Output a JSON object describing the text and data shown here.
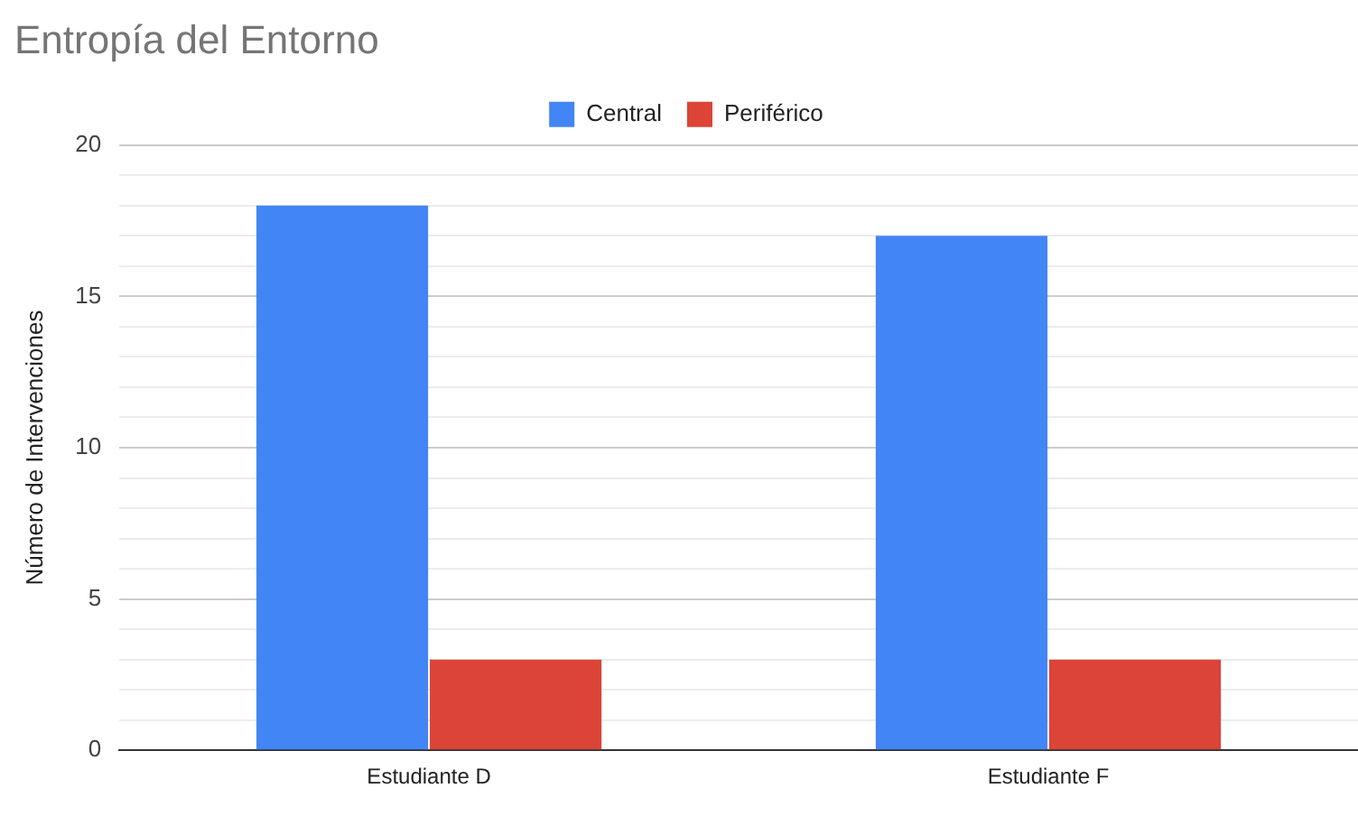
{
  "chart_data": {
    "type": "bar",
    "title": "Entropía del Entorno",
    "ylabel": "Número de Intervenciones",
    "categories": [
      "Estudiante D",
      "Estudiante F"
    ],
    "series": [
      {
        "name": "Central",
        "color": "#4285f4",
        "values": [
          18,
          17
        ]
      },
      {
        "name": "Periférico",
        "color": "#db4437",
        "values": [
          3,
          3
        ]
      }
    ],
    "ylim": [
      0,
      20
    ],
    "yticks": [
      0,
      {
        "value": 1,
        "label": null
      },
      {
        "value": 2,
        "label": null
      },
      {
        "value": 3,
        "label": null
      },
      {
        "value": 4,
        "label": null
      },
      5,
      {
        "value": 6,
        "label": null
      },
      {
        "value": 7,
        "label": null
      },
      {
        "value": 8,
        "label": null
      },
      {
        "value": 9,
        "label": null
      },
      10,
      {
        "value": 11,
        "label": null
      },
      {
        "value": 12,
        "label": null
      },
      {
        "value": 13,
        "label": null
      },
      {
        "value": 14,
        "label": null
      },
      15,
      {
        "value": 16,
        "label": null
      },
      {
        "value": 17,
        "label": null
      },
      {
        "value": 18,
        "label": null
      },
      {
        "value": 19,
        "label": null
      },
      20
    ],
    "grid": "y",
    "legend": "top"
  }
}
